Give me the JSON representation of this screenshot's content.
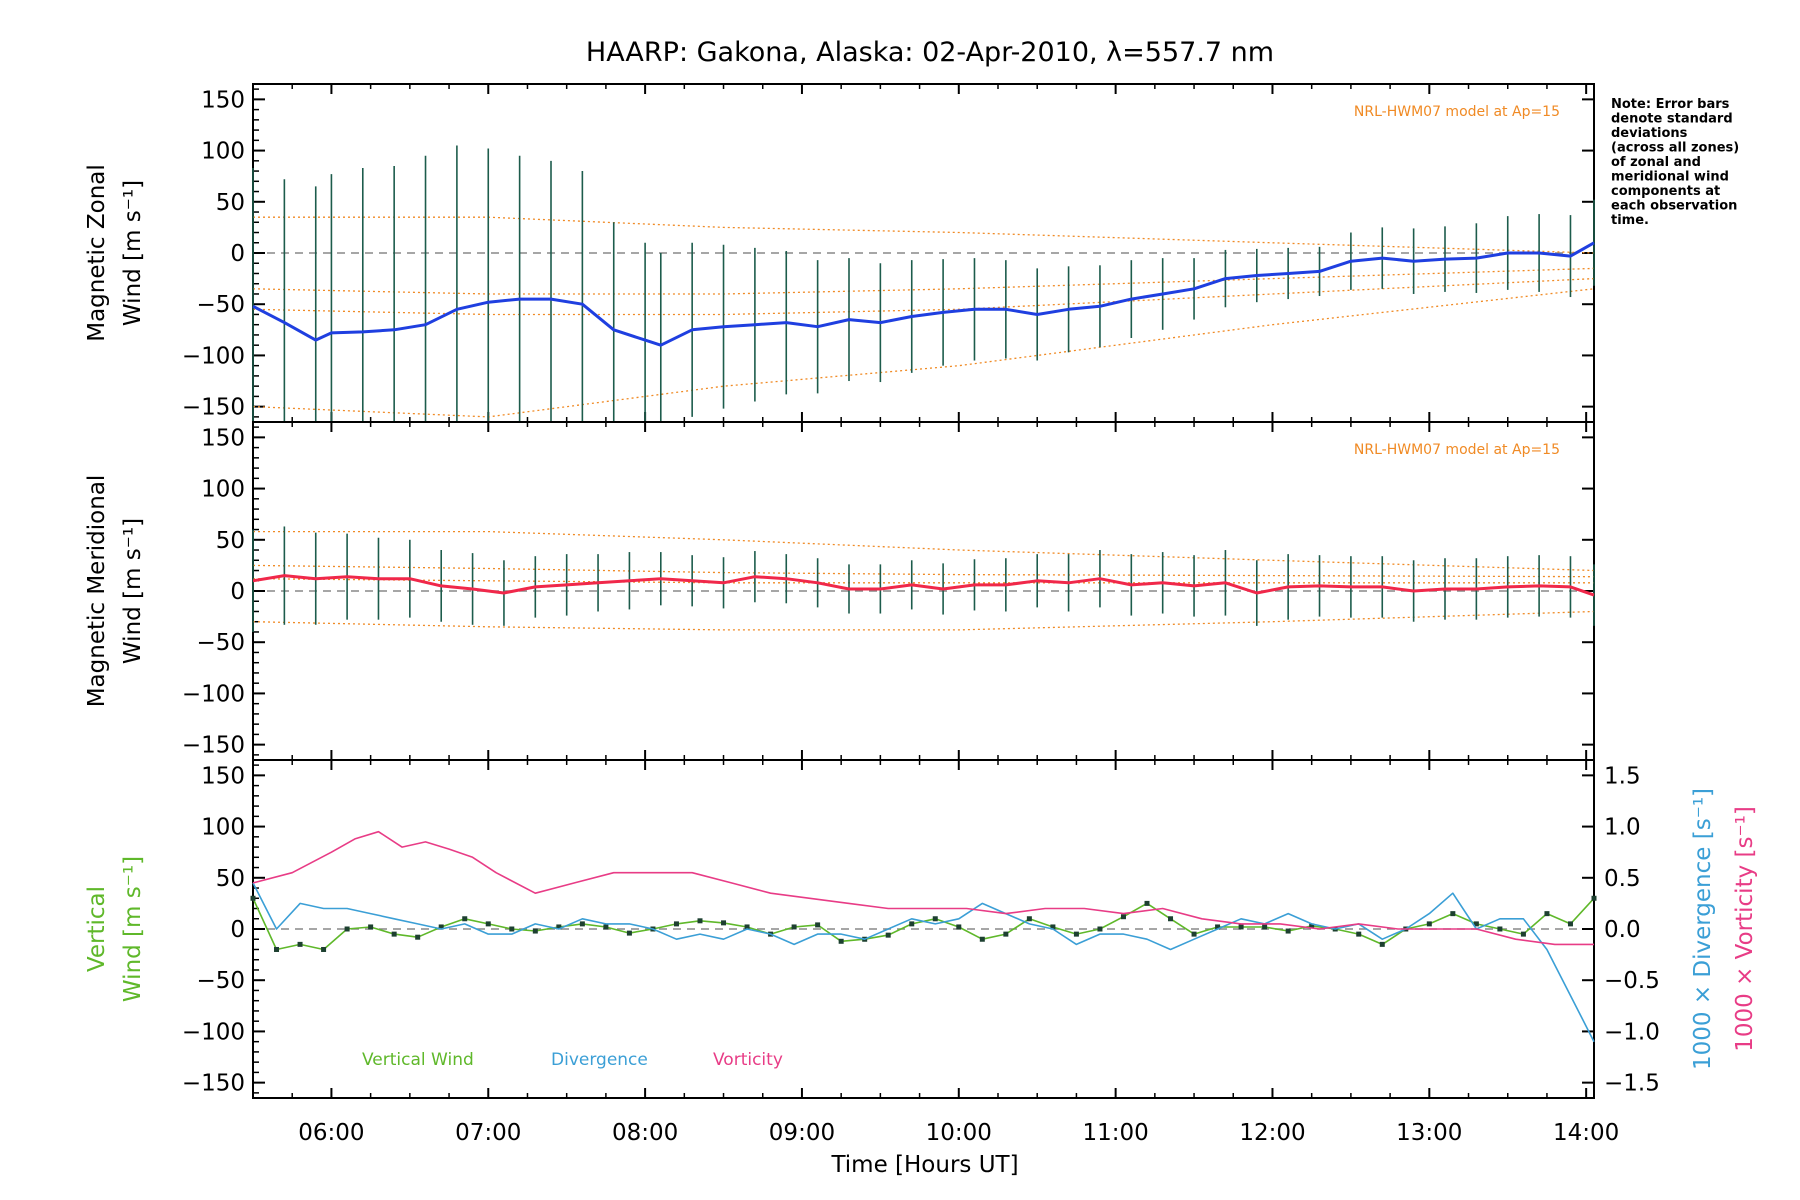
{
  "figure": {
    "title": "HAARP: Gakona,  Alaska: 02-Apr-2010, λ=557.7 nm",
    "note_lines": [
      "Note: Error bars",
      "denote standard",
      "deviations",
      "(across all zones)",
      "of zonal and",
      "meridional wind",
      "components at",
      "each observation",
      "time."
    ],
    "model_label": "NRL-HWM07 model at Ap=15",
    "xlabel": "Time [Hours UT]",
    "panel_labels": {
      "zonal": [
        "Magnetic Zonal",
        "Wind [m s⁻¹]"
      ],
      "meridional": [
        "Magnetic Meridional",
        "Wind [m s⁻¹]"
      ],
      "vertical": [
        "Vertical",
        "Wind [m s⁻¹]"
      ],
      "divergence_axis": "1000 × Divergence [s⁻¹]",
      "vorticity_axis": "1000 × Vorticity [s⁻¹]"
    },
    "legend": {
      "vertical": "Vertical Wind",
      "divergence": "Divergence",
      "vorticity": "Vorticity"
    },
    "colors": {
      "zonal": "#1f3fe0",
      "meridional": "#f0284a",
      "vertical": "#5fb82a",
      "divergence": "#3b9fd6",
      "vorticity": "#e83c86",
      "model": "#f08a24",
      "errorbar": "#1d5c4c"
    }
  },
  "chart_data": {
    "type": "line",
    "x_unit": "Hours UT",
    "xlim": [
      5.5,
      14.05
    ],
    "x_ticks": [
      6,
      7,
      8,
      9,
      10,
      11,
      12,
      13,
      14
    ],
    "x_tick_labels": [
      "06:00",
      "07:00",
      "08:00",
      "09:00",
      "10:00",
      "11:00",
      "12:00",
      "13:00",
      "14:00"
    ],
    "panels": [
      {
        "id": "zonal",
        "ylim": [
          -165,
          165
        ],
        "y_ticks": [
          -150,
          -100,
          -50,
          0,
          50,
          100,
          150
        ],
        "series": [
          {
            "key": "zonal",
            "x": [
              5.5,
              5.7,
              5.9,
              6.0,
              6.2,
              6.4,
              6.6,
              6.8,
              7.0,
              7.2,
              7.4,
              7.6,
              7.8,
              8.0,
              8.1,
              8.3,
              8.5,
              8.7,
              8.9,
              9.1,
              9.3,
              9.5,
              9.7,
              9.9,
              10.1,
              10.3,
              10.5,
              10.7,
              10.9,
              11.1,
              11.3,
              11.5,
              11.7,
              11.9,
              12.1,
              12.3,
              12.5,
              12.7,
              12.9,
              13.1,
              13.3,
              13.5,
              13.7,
              13.9,
              14.05
            ],
            "y": [
              -52,
              -68,
              -85,
              -78,
              -77,
              -75,
              -70,
              -55,
              -48,
              -45,
              -45,
              -50,
              -75,
              -85,
              -90,
              -75,
              -72,
              -70,
              -68,
              -72,
              -65,
              -68,
              -62,
              -58,
              -55,
              -55,
              -60,
              -55,
              -52,
              -45,
              -40,
              -35,
              -25,
              -22,
              -20,
              -18,
              -8,
              -5,
              -8,
              -6,
              -5,
              0,
              0,
              -3,
              10
            ],
            "error": [
              135,
              140,
              150,
              155,
              160,
              160,
              165,
              160,
              150,
              140,
              135,
              130,
              105,
              95,
              90,
              85,
              80,
              75,
              70,
              65,
              60,
              58,
              55,
              52,
              50,
              48,
              45,
              42,
              40,
              38,
              35,
              30,
              28,
              26,
              25,
              24,
              28,
              30,
              32,
              32,
              34,
              36,
              38,
              40,
              42
            ]
          }
        ],
        "model_profiles": {
          "upper": [
            35,
            35,
            25,
            20,
            10,
            0
          ],
          "mid1": [
            -35,
            -40,
            -40,
            -35,
            -25,
            -15
          ],
          "mid2": [
            -55,
            -60,
            -60,
            -55,
            -40,
            -25
          ],
          "lower": [
            -150,
            -160,
            -130,
            -110,
            -70,
            -35
          ],
          "x": [
            5.5,
            7.0,
            8.5,
            10.0,
            12.0,
            14.05
          ]
        }
      },
      {
        "id": "meridional",
        "ylim": [
          -165,
          165
        ],
        "y_ticks": [
          -150,
          -100,
          -50,
          0,
          50,
          100,
          150
        ],
        "series": [
          {
            "key": "meridional",
            "x": [
              5.5,
              5.7,
              5.9,
              6.1,
              6.3,
              6.5,
              6.7,
              6.9,
              7.1,
              7.3,
              7.5,
              7.7,
              7.9,
              8.1,
              8.3,
              8.5,
              8.7,
              8.9,
              9.1,
              9.3,
              9.5,
              9.7,
              9.9,
              10.1,
              10.3,
              10.5,
              10.7,
              10.9,
              11.1,
              11.3,
              11.5,
              11.7,
              11.9,
              12.1,
              12.3,
              12.5,
              12.7,
              12.9,
              13.1,
              13.3,
              13.5,
              13.7,
              13.9,
              14.05
            ],
            "y": [
              10,
              15,
              12,
              14,
              12,
              12,
              5,
              2,
              -2,
              4,
              6,
              8,
              10,
              12,
              10,
              8,
              14,
              12,
              8,
              2,
              2,
              6,
              2,
              6,
              6,
              10,
              8,
              12,
              6,
              8,
              5,
              8,
              -2,
              4,
              5,
              4,
              4,
              0,
              2,
              2,
              4,
              5,
              4,
              -4
            ],
            "error": [
              50,
              48,
              45,
              42,
              40,
              38,
              35,
              35,
              32,
              30,
              30,
              28,
              28,
              26,
              25,
              25,
              25,
              24,
              24,
              24,
              24,
              24,
              25,
              25,
              26,
              26,
              28,
              28,
              30,
              30,
              30,
              32,
              32,
              32,
              30,
              30,
              30,
              30,
              30,
              30,
              30,
              30,
              30,
              30
            ]
          }
        ],
        "model_profiles": {
          "upper": [
            58,
            58,
            50,
            40,
            30,
            20
          ],
          "mid1": [
            25,
            22,
            18,
            16,
            15,
            14
          ],
          "mid2": [
            12,
            10,
            8,
            8,
            8,
            8
          ],
          "lower": [
            -30,
            -35,
            -38,
            -38,
            -30,
            -20
          ],
          "x": [
            5.5,
            7.0,
            8.5,
            10.0,
            12.0,
            14.05
          ]
        }
      },
      {
        "id": "vertical",
        "ylim": [
          -165,
          165
        ],
        "y_ticks": [
          -150,
          -100,
          -50,
          0,
          50,
          100,
          150
        ],
        "y2lim": [
          -1.65,
          1.65
        ],
        "y2_ticks": [
          -1.5,
          -1.0,
          -0.5,
          0.0,
          0.5,
          1.0,
          1.5
        ],
        "y2_tick_labels": [
          "−1.5",
          "−1.0",
          "−0.5",
          "0.0",
          "0.5",
          "1.0",
          "1.5"
        ],
        "series": [
          {
            "key": "vertical",
            "axis": "left",
            "x": [
              5.5,
              5.65,
              5.8,
              5.95,
              6.1,
              6.25,
              6.4,
              6.55,
              6.7,
              6.85,
              7.0,
              7.15,
              7.3,
              7.45,
              7.6,
              7.75,
              7.9,
              8.05,
              8.2,
              8.35,
              8.5,
              8.65,
              8.8,
              8.95,
              9.1,
              9.25,
              9.4,
              9.55,
              9.7,
              9.85,
              10.0,
              10.15,
              10.3,
              10.45,
              10.6,
              10.75,
              10.9,
              11.05,
              11.2,
              11.35,
              11.5,
              11.65,
              11.8,
              11.95,
              12.1,
              12.25,
              12.4,
              12.55,
              12.7,
              12.85,
              13.0,
              13.15,
              13.3,
              13.45,
              13.6,
              13.75,
              13.9,
              14.05
            ],
            "y": [
              30,
              -20,
              -15,
              -20,
              0,
              2,
              -5,
              -8,
              2,
              10,
              5,
              0,
              -2,
              2,
              5,
              2,
              -4,
              0,
              5,
              8,
              6,
              2,
              -5,
              2,
              4,
              -12,
              -10,
              -6,
              5,
              10,
              2,
              -10,
              -5,
              10,
              2,
              -5,
              0,
              12,
              25,
              10,
              -5,
              2,
              2,
              2,
              -2,
              3,
              0,
              -5,
              -15,
              0,
              5,
              15,
              5,
              0,
              -5,
              15,
              5,
              30
            ]
          },
          {
            "key": "divergence",
            "axis": "right",
            "x": [
              5.5,
              5.65,
              5.8,
              5.95,
              6.1,
              6.25,
              6.4,
              6.55,
              6.7,
              6.85,
              7.0,
              7.15,
              7.3,
              7.45,
              7.6,
              7.75,
              7.9,
              8.05,
              8.2,
              8.35,
              8.5,
              8.65,
              8.8,
              8.95,
              9.1,
              9.25,
              9.4,
              9.55,
              9.7,
              9.85,
              10.0,
              10.15,
              10.3,
              10.45,
              10.6,
              10.75,
              10.9,
              11.05,
              11.2,
              11.35,
              11.5,
              11.65,
              11.8,
              11.95,
              12.1,
              12.25,
              12.4,
              12.55,
              12.7,
              12.85,
              13.0,
              13.15,
              13.3,
              13.45,
              13.6,
              13.75,
              13.9,
              14.05
            ],
            "y": [
              0.45,
              0.0,
              0.25,
              0.2,
              0.2,
              0.15,
              0.1,
              0.05,
              0.0,
              0.05,
              -0.05,
              -0.05,
              0.05,
              0.0,
              0.1,
              0.05,
              0.05,
              0.0,
              -0.1,
              -0.05,
              -0.1,
              0.0,
              -0.05,
              -0.15,
              -0.05,
              -0.05,
              -0.1,
              0.0,
              0.1,
              0.05,
              0.1,
              0.25,
              0.15,
              0.05,
              0.0,
              -0.15,
              -0.05,
              -0.05,
              -0.1,
              -0.2,
              -0.1,
              0.0,
              0.1,
              0.05,
              0.15,
              0.05,
              0.0,
              0.05,
              -0.1,
              0.0,
              0.15,
              0.35,
              0.0,
              0.1,
              0.1,
              -0.2,
              -0.65,
              -1.1
            ]
          },
          {
            "key": "vorticity",
            "axis": "right",
            "x": [
              5.5,
              5.75,
              6.0,
              6.15,
              6.3,
              6.45,
              6.6,
              6.75,
              6.9,
              7.05,
              7.3,
              7.55,
              7.8,
              8.05,
              8.3,
              8.55,
              8.8,
              9.05,
              9.3,
              9.55,
              9.8,
              10.05,
              10.3,
              10.55,
              10.8,
              11.05,
              11.3,
              11.55,
              11.8,
              12.05,
              12.3,
              12.55,
              12.8,
              13.05,
              13.3,
              13.55,
              13.8,
              14.05
            ],
            "y": [
              0.45,
              0.55,
              0.75,
              0.88,
              0.95,
              0.8,
              0.85,
              0.78,
              0.7,
              0.55,
              0.35,
              0.45,
              0.55,
              0.55,
              0.55,
              0.45,
              0.35,
              0.3,
              0.25,
              0.2,
              0.2,
              0.2,
              0.15,
              0.2,
              0.2,
              0.15,
              0.2,
              0.1,
              0.05,
              0.05,
              0.0,
              0.05,
              0.0,
              0.0,
              0.0,
              -0.1,
              -0.15,
              -0.15
            ]
          }
        ]
      }
    ]
  }
}
